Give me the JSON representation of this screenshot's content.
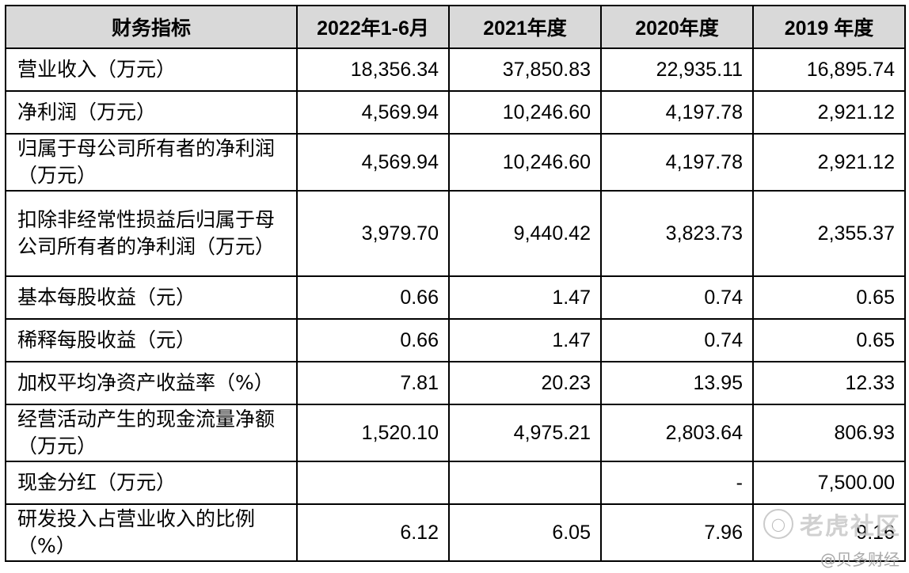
{
  "table": {
    "headers": [
      "财务指标",
      "2022年1-6月",
      "2021年度",
      "2020年度",
      "2019 年度"
    ],
    "rows": [
      {
        "label": "营业收入（万元）",
        "values": [
          "18,356.34",
          "37,850.83",
          "22,935.11",
          "16,895.74"
        ]
      },
      {
        "label": "净利润（万元）",
        "values": [
          "4,569.94",
          "10,246.60",
          "4,197.78",
          "2,921.12"
        ]
      },
      {
        "label": "归属于母公司所有者的净利润（万元）",
        "values": [
          "4,569.94",
          "10,246.60",
          "4,197.78",
          "2,921.12"
        ]
      },
      {
        "label": "扣除非经常性损益后归属于母公司所有者的净利润（万元）",
        "values": [
          "3,979.70",
          "9,440.42",
          "3,823.73",
          "2,355.37"
        ]
      },
      {
        "label": "基本每股收益（元）",
        "values": [
          "0.66",
          "1.47",
          "0.74",
          "0.65"
        ]
      },
      {
        "label": "稀释每股收益（元）",
        "values": [
          "0.66",
          "1.47",
          "0.74",
          "0.65"
        ]
      },
      {
        "label": "加权平均净资产收益率（%）",
        "values": [
          "7.81",
          "20.23",
          "13.95",
          "12.33"
        ]
      },
      {
        "label": "经营活动产生的现金流量净额（万元）",
        "values": [
          "1,520.10",
          "4,975.21",
          "2,803.64",
          "806.93"
        ]
      },
      {
        "label": "现金分红（万元）",
        "values": [
          "",
          "",
          "-",
          "7,500.00"
        ]
      },
      {
        "label": "研发投入占营业收入的比例（%）",
        "values": [
          "6.12",
          "6.05",
          "7.96",
          "9.16"
        ]
      }
    ]
  },
  "watermark": {
    "main": "老虎社区",
    "sub": "@贝多财经",
    "logo_icon": "tiger-logo-icon"
  }
}
